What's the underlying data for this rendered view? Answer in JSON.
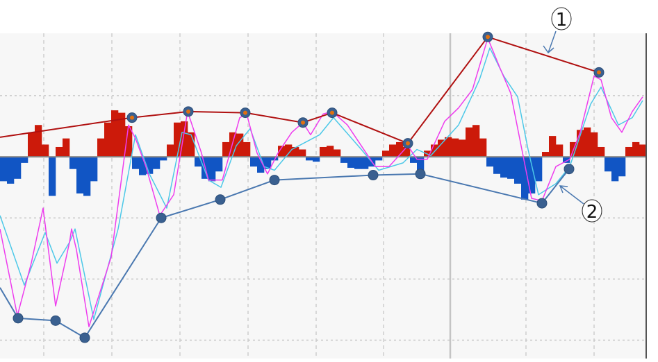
{
  "chart_data": {
    "type": "line",
    "title": "",
    "xlabel": "",
    "ylabel": "",
    "xlim": [
      0,
      93
    ],
    "ylim": [
      -165,
      101
    ],
    "grid": true,
    "x_grid": [
      6.3,
      16.1,
      25.9,
      35.7,
      45.5,
      55.2,
      75.7,
      85.5
    ],
    "x_separator": 64.8,
    "y_grid": [
      50,
      -50,
      -100,
      -150
    ],
    "zero_line": 0,
    "colors": {
      "background": "#f7f7f7",
      "grid": "#c8c8c8",
      "zero_line": "#888888",
      "hist_positive": "#cc1a0a",
      "hist_negative": "#1155c4",
      "fast_line": "#ee3cee",
      "slow_line": "#4cc8e8",
      "upper_trend": "#b01010",
      "lower_trend": "#4a78b0",
      "marker_fill": "#3a6090",
      "marker_center": "#e07010"
    },
    "histogram": {
      "x_step": 1,
      "values": [
        -20,
        -22,
        -18,
        -5,
        20,
        26,
        10,
        -32,
        8,
        15,
        -10,
        -30,
        -32,
        -20,
        15,
        28,
        38,
        36,
        25,
        -10,
        -15,
        -14,
        -10,
        -3,
        10,
        28,
        29,
        20,
        -8,
        -18,
        -20,
        -12,
        12,
        20,
        19,
        12,
        -8,
        -13,
        -10,
        -3,
        9,
        10,
        8,
        6,
        -3,
        -4,
        8,
        9,
        6,
        -5,
        -9,
        -10,
        -10,
        -8,
        -3,
        5,
        10,
        12,
        8,
        -5,
        -15,
        5,
        10,
        14,
        16,
        15,
        14,
        24,
        26,
        15,
        -8,
        -14,
        -17,
        -18,
        -22,
        -35,
        -30,
        -20,
        4,
        17,
        10,
        -5,
        12,
        22,
        24,
        20,
        8,
        -12,
        -20,
        -16,
        8,
        12,
        10
      ]
    },
    "series": [
      {
        "key": "fast",
        "points": [
          [
            0,
            -59
          ],
          [
            2.5,
            -130
          ],
          [
            4.5,
            -87
          ],
          [
            6.2,
            -42
          ],
          [
            8,
            -122
          ],
          [
            10,
            -70
          ],
          [
            10.3,
            -59
          ],
          [
            11,
            -76
          ],
          [
            12.8,
            -139
          ],
          [
            16,
            -82
          ],
          [
            18.5,
            26
          ],
          [
            19.5,
            15
          ],
          [
            21,
            -8
          ],
          [
            23,
            -48
          ],
          [
            25,
            -31
          ],
          [
            27,
            37
          ],
          [
            29,
            3
          ],
          [
            30,
            -19
          ],
          [
            32,
            -19
          ],
          [
            34.5,
            32
          ],
          [
            35.5,
            35
          ],
          [
            37,
            3
          ],
          [
            38.5,
            -14
          ],
          [
            40,
            3
          ],
          [
            42,
            20
          ],
          [
            43.6,
            28
          ],
          [
            44.7,
            18
          ],
          [
            46.5,
            35
          ],
          [
            47.8,
            37
          ],
          [
            50,
            26
          ],
          [
            54,
            -8
          ],
          [
            56,
            -8
          ],
          [
            58.7,
            9
          ],
          [
            60,
            -2
          ],
          [
            61.5,
            -2
          ],
          [
            64,
            29
          ],
          [
            66,
            40
          ],
          [
            68,
            55
          ],
          [
            70.2,
            97
          ],
          [
            72,
            72
          ],
          [
            73.5,
            52
          ],
          [
            75,
            9
          ],
          [
            76.5,
            -34
          ],
          [
            78,
            -36
          ],
          [
            80,
            -8
          ],
          [
            82,
            -2
          ],
          [
            83.5,
            20
          ],
          [
            85.5,
            66
          ],
          [
            86.5,
            63
          ],
          [
            88,
            32
          ],
          [
            89.5,
            20
          ],
          [
            91,
            37
          ],
          [
            92.5,
            49
          ]
        ]
      },
      {
        "key": "slow",
        "points": [
          [
            0,
            -48
          ],
          [
            3.5,
            -105
          ],
          [
            6.5,
            -62
          ],
          [
            8.2,
            -87
          ],
          [
            10,
            -70
          ],
          [
            10.8,
            -59
          ],
          [
            13.5,
            -133
          ],
          [
            17,
            -59
          ],
          [
            19.5,
            18
          ],
          [
            21.5,
            -14
          ],
          [
            24,
            -42
          ],
          [
            26.2,
            20
          ],
          [
            27.5,
            18
          ],
          [
            30,
            -19
          ],
          [
            31.8,
            -25
          ],
          [
            34,
            9
          ],
          [
            36,
            23
          ],
          [
            38,
            -8
          ],
          [
            39.5,
            -11
          ],
          [
            42,
            6
          ],
          [
            44,
            12
          ],
          [
            46,
            18
          ],
          [
            48,
            32
          ],
          [
            52,
            6
          ],
          [
            54.5,
            -11
          ],
          [
            58,
            -5
          ],
          [
            60,
            6
          ],
          [
            62,
            1
          ],
          [
            66,
            26
          ],
          [
            69,
            63
          ],
          [
            70.5,
            89
          ],
          [
            72.5,
            66
          ],
          [
            74.5,
            49
          ],
          [
            76,
            6
          ],
          [
            77.5,
            -31
          ],
          [
            80,
            -22
          ],
          [
            82,
            -8
          ],
          [
            85,
            43
          ],
          [
            86.5,
            57
          ],
          [
            89,
            26
          ],
          [
            91,
            32
          ],
          [
            92.5,
            46
          ]
        ]
      },
      {
        "key": "upper_trend",
        "line_start": [
          0,
          16
        ],
        "points": [
          [
            19,
            32
          ],
          [
            27.1,
            37
          ],
          [
            35.3,
            36
          ],
          [
            43.6,
            28
          ],
          [
            47.8,
            36
          ],
          [
            58.7,
            11
          ],
          [
            70.2,
            98
          ],
          [
            86.2,
            69
          ]
        ]
      },
      {
        "key": "lower_trend",
        "line_start": [
          0,
          -107
        ],
        "points": [
          [
            2.6,
            -132
          ],
          [
            8,
            -134
          ],
          [
            12.2,
            -148
          ],
          [
            23.2,
            -50
          ],
          [
            31.7,
            -35
          ],
          [
            39.5,
            -19
          ],
          [
            53.7,
            -15
          ],
          [
            60.5,
            -14
          ],
          [
            78,
            -38
          ],
          [
            81.9,
            -10
          ]
        ]
      }
    ],
    "annotations": [
      {
        "label": "1",
        "target": "upper_trend"
      },
      {
        "label": "2",
        "target": "lower_trend"
      }
    ]
  }
}
